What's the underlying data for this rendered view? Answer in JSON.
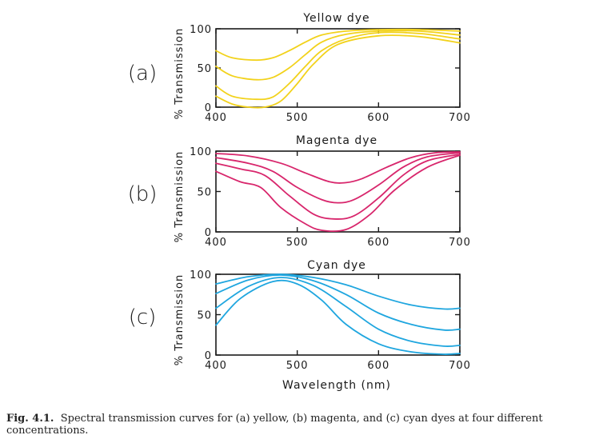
{
  "chart_data": [
    {
      "id": "a",
      "type": "line",
      "title": "Yellow dye",
      "panel_label": "(a)",
      "ylabel": "% Transmission",
      "xlim": [
        400,
        700
      ],
      "ylim": [
        0,
        100
      ],
      "xticks": [
        400,
        500,
        600,
        700
      ],
      "yticks": [
        0,
        50,
        100
      ],
      "color": "#f2d21b",
      "series": [
        {
          "points": [
            [
              400,
              72
            ],
            [
              420,
              63
            ],
            [
              450,
              60
            ],
            [
              470,
              63
            ],
            [
              490,
              72
            ],
            [
              510,
              83
            ],
            [
              530,
              92
            ],
            [
              560,
              97
            ],
            [
              600,
              99
            ],
            [
              650,
              99
            ],
            [
              700,
              97
            ]
          ]
        },
        {
          "points": [
            [
              400,
              52
            ],
            [
              420,
              40
            ],
            [
              450,
              35
            ],
            [
              470,
              38
            ],
            [
              490,
              50
            ],
            [
              510,
              67
            ],
            [
              530,
              83
            ],
            [
              560,
              93
            ],
            [
              600,
              97
            ],
            [
              650,
              97
            ],
            [
              700,
              92
            ]
          ]
        },
        {
          "points": [
            [
              400,
              27
            ],
            [
              420,
              14
            ],
            [
              450,
              10
            ],
            [
              470,
              13
            ],
            [
              490,
              30
            ],
            [
              510,
              52
            ],
            [
              530,
              72
            ],
            [
              560,
              87
            ],
            [
              600,
              95
            ],
            [
              650,
              94
            ],
            [
              700,
              87
            ]
          ]
        },
        {
          "points": [
            [
              400,
              14
            ],
            [
              420,
              4
            ],
            [
              440,
              0
            ],
            [
              460,
              0
            ],
            [
              480,
              8
            ],
            [
              500,
              30
            ],
            [
              520,
              55
            ],
            [
              550,
              80
            ],
            [
              600,
              91
            ],
            [
              650,
              90
            ],
            [
              700,
              82
            ]
          ]
        }
      ]
    },
    {
      "id": "b",
      "type": "line",
      "title": "Magenta dye",
      "panel_label": "(b)",
      "ylabel": "% Transmission",
      "xlim": [
        400,
        700
      ],
      "ylim": [
        0,
        100
      ],
      "xticks": [
        400,
        500,
        600,
        700
      ],
      "yticks": [
        0,
        50,
        100
      ],
      "color": "#d8266c",
      "series": [
        {
          "points": [
            [
              400,
              97
            ],
            [
              440,
              94
            ],
            [
              480,
              85
            ],
            [
              510,
              73
            ],
            [
              540,
              62
            ],
            [
              560,
              61
            ],
            [
              580,
              66
            ],
            [
              610,
              80
            ],
            [
              640,
              92
            ],
            [
              670,
              98
            ],
            [
              700,
              99
            ]
          ]
        },
        {
          "points": [
            [
              400,
              92
            ],
            [
              440,
              85
            ],
            [
              470,
              75
            ],
            [
              500,
              55
            ],
            [
              530,
              40
            ],
            [
              550,
              36
            ],
            [
              570,
              40
            ],
            [
              600,
              58
            ],
            [
              630,
              80
            ],
            [
              660,
              93
            ],
            [
              700,
              98
            ]
          ]
        },
        {
          "points": [
            [
              400,
              85
            ],
            [
              430,
              78
            ],
            [
              460,
              70
            ],
            [
              490,
              45
            ],
            [
              520,
              22
            ],
            [
              545,
              16
            ],
            [
              570,
              20
            ],
            [
              600,
              42
            ],
            [
              630,
              70
            ],
            [
              660,
              88
            ],
            [
              700,
              96
            ]
          ]
        },
        {
          "points": [
            [
              400,
              75
            ],
            [
              430,
              62
            ],
            [
              455,
              55
            ],
            [
              480,
              30
            ],
            [
              510,
              10
            ],
            [
              530,
              2
            ],
            [
              560,
              3
            ],
            [
              590,
              22
            ],
            [
              620,
              52
            ],
            [
              660,
              80
            ],
            [
              700,
              95
            ]
          ]
        }
      ]
    },
    {
      "id": "c",
      "type": "line",
      "title": "Cyan dye",
      "panel_label": "(c)",
      "ylabel": "% Transmission",
      "xlabel": "Wavelength (nm)",
      "xlim": [
        400,
        700
      ],
      "ylim": [
        0,
        100
      ],
      "xticks": [
        400,
        500,
        600,
        700
      ],
      "yticks": [
        0,
        50,
        100
      ],
      "color": "#1fa6df",
      "series": [
        {
          "points": [
            [
              400,
              88
            ],
            [
              440,
              97
            ],
            [
              480,
              100
            ],
            [
              520,
              96
            ],
            [
              560,
              87
            ],
            [
              600,
              73
            ],
            [
              640,
              62
            ],
            [
              680,
              57
            ],
            [
              700,
              58
            ]
          ]
        },
        {
          "points": [
            [
              400,
              76
            ],
            [
              440,
              93
            ],
            [
              480,
              99
            ],
            [
              520,
              92
            ],
            [
              560,
              75
            ],
            [
              600,
              52
            ],
            [
              640,
              38
            ],
            [
              680,
              31
            ],
            [
              700,
              32
            ]
          ]
        },
        {
          "points": [
            [
              400,
              58
            ],
            [
              440,
              85
            ],
            [
              480,
              96
            ],
            [
              520,
              86
            ],
            [
              560,
              60
            ],
            [
              600,
              32
            ],
            [
              640,
              17
            ],
            [
              680,
              11
            ],
            [
              700,
              12
            ]
          ]
        },
        {
          "points": [
            [
              400,
              37
            ],
            [
              430,
              70
            ],
            [
              470,
              91
            ],
            [
              500,
              88
            ],
            [
              530,
              68
            ],
            [
              560,
              38
            ],
            [
              600,
              14
            ],
            [
              640,
              4
            ],
            [
              680,
              1
            ],
            [
              700,
              2
            ]
          ]
        }
      ]
    }
  ],
  "caption": {
    "label": "Fig. 4.1.",
    "text": "Spectral transmission curves for (a) yellow, (b) magenta, and (c) cyan dyes at four different concentrations."
  }
}
